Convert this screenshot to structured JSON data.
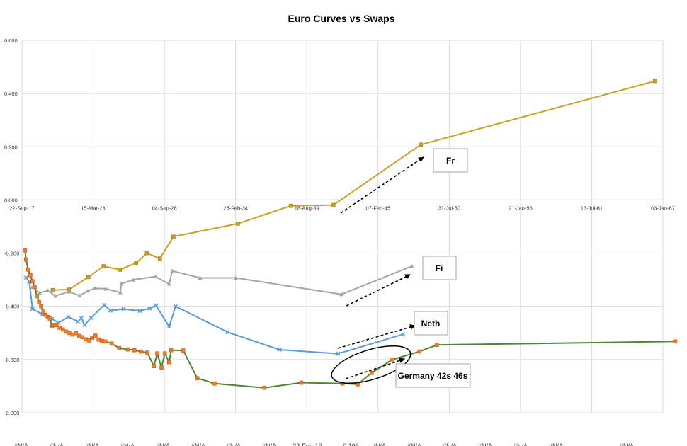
{
  "chart_data": {
    "type": "line",
    "title": "Euro Curves vs Swaps",
    "xlabel": "",
    "ylabel": "",
    "ylim": [
      -0.8,
      0.6
    ],
    "xlim": [
      "2017-09-22",
      "2067-01-03"
    ],
    "y_ticks": [
      "0.600",
      "0.400",
      "0.200",
      "0.000",
      "-0.200",
      "-0.400",
      "-0.600",
      "-0.800"
    ],
    "y_tick_values": [
      0.6,
      0.4,
      0.2,
      0.0,
      -0.2,
      -0.4,
      -0.6,
      -0.8
    ],
    "x_ticks": [
      "22-Sep-17",
      "15-Mar-23",
      "04-Sep-28",
      "25-Feb-34",
      "18-Aug-39",
      "07-Feb-45",
      "31-Jul-50",
      "21-Jan-56",
      "13-Jul-61",
      "03-Jan-67"
    ],
    "x_tick_dates": [
      "2017-09-22",
      "2023-03-15",
      "2028-09-04",
      "2034-02-25",
      "2039-08-18",
      "2045-02-07",
      "2050-07-31",
      "2056-01-21",
      "2061-07-13",
      "2067-01-03"
    ],
    "grid": true,
    "legend": "none",
    "bottom_labels": [
      "#N/A",
      "#N/A",
      "#N/A",
      "#N/A",
      "#N/A",
      "#N/A",
      "#N/A",
      "#N/A",
      "22-Feb-19",
      "-0.193",
      "#N/A",
      "#N/A",
      "#N/A",
      "#N/A",
      "#N/A",
      "#N/A",
      "#N/A"
    ],
    "series": [
      {
        "name": "Fr",
        "color": "#C9A227",
        "marker": "square",
        "points": [
          [
            "2020-02-01",
            -0.339
          ],
          [
            "2021-05-01",
            -0.337
          ],
          [
            "2022-11-01",
            -0.29
          ],
          [
            "2024-01-01",
            -0.249
          ],
          [
            "2025-04-01",
            -0.262
          ],
          [
            "2026-07-01",
            -0.237
          ],
          [
            "2027-05-01",
            -0.2
          ],
          [
            "2028-05-01",
            -0.22
          ],
          [
            "2029-05-15",
            -0.138
          ],
          [
            "2034-05-01",
            -0.089
          ],
          [
            "2038-05-25",
            -0.022
          ],
          [
            "2041-09-01",
            -0.019
          ],
          [
            "2048-05-25",
            0.208
          ],
          [
            "2066-05-25",
            0.447
          ]
        ]
      },
      {
        "name": "Fi",
        "color": "#A5A5A5",
        "marker": "triangle",
        "points": [
          [
            "2018-07-01",
            -0.328
          ],
          [
            "2019-02-01",
            -0.35
          ],
          [
            "2019-09-15",
            -0.34
          ],
          [
            "2020-04-15",
            -0.361
          ],
          [
            "2021-05-01",
            -0.345
          ],
          [
            "2022-03-01",
            -0.36
          ],
          [
            "2022-10-15",
            -0.342
          ],
          [
            "2023-05-01",
            -0.332
          ],
          [
            "2024-03-01",
            -0.334
          ],
          [
            "2025-04-15",
            -0.348
          ],
          [
            "2025-05-15",
            -0.315
          ],
          [
            "2026-04-15",
            -0.3
          ],
          [
            "2028-01-01",
            -0.288
          ],
          [
            "2029-01-15",
            -0.316
          ],
          [
            "2029-04-15",
            -0.267
          ],
          [
            "2031-06-01",
            -0.293
          ],
          [
            "2034-03-01",
            -0.293
          ],
          [
            "2042-04-15",
            -0.355
          ],
          [
            "2047-09-15",
            -0.249
          ]
        ]
      },
      {
        "name": "Neth",
        "color": "#5B9BD5",
        "marker": "x",
        "points": [
          [
            "2018-01-15",
            -0.292
          ],
          [
            "2018-04-15",
            -0.308
          ],
          [
            "2018-07-15",
            -0.41
          ],
          [
            "2019-04-15",
            -0.43
          ],
          [
            "2020-01-15",
            -0.447
          ],
          [
            "2020-07-15",
            -0.462
          ],
          [
            "2021-04-15",
            -0.44
          ],
          [
            "2022-01-15",
            -0.457
          ],
          [
            "2022-04-15",
            -0.444
          ],
          [
            "2022-07-15",
            -0.47
          ],
          [
            "2023-01-15",
            -0.443
          ],
          [
            "2024-01-15",
            -0.395
          ],
          [
            "2024-07-15",
            -0.416
          ],
          [
            "2025-07-15",
            -0.41
          ],
          [
            "2026-10-15",
            -0.417
          ],
          [
            "2027-07-15",
            -0.408
          ],
          [
            "2028-01-15",
            -0.397
          ],
          [
            "2029-01-15",
            -0.476
          ],
          [
            "2029-07-15",
            -0.4
          ],
          [
            "2033-07-15",
            -0.497
          ],
          [
            "2037-07-15",
            -0.563
          ],
          [
            "2042-01-15",
            -0.578
          ],
          [
            "2047-01-15",
            -0.505
          ]
        ]
      },
      {
        "name": "Germany",
        "color": "#548235",
        "marker": "square",
        "marker_color": "#ED7D31",
        "points": [
          [
            "2017-12-15",
            -0.19
          ],
          [
            "2018-01-15",
            -0.224
          ],
          [
            "2018-03-15",
            -0.262
          ],
          [
            "2018-05-15",
            -0.283
          ],
          [
            "2018-07-15",
            -0.306
          ],
          [
            "2018-09-15",
            -0.327
          ],
          [
            "2018-11-15",
            -0.362
          ],
          [
            "2019-01-15",
            -0.384
          ],
          [
            "2019-03-15",
            -0.4
          ],
          [
            "2019-05-15",
            -0.42
          ],
          [
            "2019-07-15",
            -0.432
          ],
          [
            "2019-09-15",
            -0.44
          ],
          [
            "2019-11-15",
            -0.446
          ],
          [
            "2020-01-15",
            -0.476
          ],
          [
            "2020-03-15",
            -0.47
          ],
          [
            "2020-05-15",
            -0.47
          ],
          [
            "2020-08-15",
            -0.48
          ],
          [
            "2020-11-15",
            -0.487
          ],
          [
            "2021-02-15",
            -0.495
          ],
          [
            "2021-05-15",
            -0.5
          ],
          [
            "2021-08-15",
            -0.506
          ],
          [
            "2021-11-15",
            -0.501
          ],
          [
            "2022-02-15",
            -0.511
          ],
          [
            "2022-05-15",
            -0.516
          ],
          [
            "2022-08-15",
            -0.524
          ],
          [
            "2022-11-15",
            -0.528
          ],
          [
            "2023-02-15",
            -0.518
          ],
          [
            "2023-05-15",
            -0.51
          ],
          [
            "2023-08-15",
            -0.525
          ],
          [
            "2023-11-15",
            -0.53
          ],
          [
            "2024-02-15",
            -0.532
          ],
          [
            "2024-08-15",
            -0.54
          ],
          [
            "2025-03-15",
            -0.557
          ],
          [
            "2025-11-15",
            -0.562
          ],
          [
            "2026-05-15",
            -0.565
          ],
          [
            "2026-11-15",
            -0.57
          ],
          [
            "2027-05-15",
            -0.574
          ],
          [
            "2027-11-15",
            -0.625
          ],
          [
            "2028-02-15",
            -0.577
          ],
          [
            "2028-06-15",
            -0.63
          ],
          [
            "2028-09-15",
            -0.577
          ],
          [
            "2029-01-15",
            -0.61
          ],
          [
            "2029-03-15",
            -0.565
          ],
          [
            "2030-02-15",
            -0.566
          ],
          [
            "2031-03-15",
            -0.67
          ],
          [
            "2032-07-15",
            -0.69
          ],
          [
            "2036-05-15",
            -0.706
          ],
          [
            "2039-03-15",
            -0.687
          ],
          [
            "2042-05-15",
            -0.69
          ],
          [
            "2043-07-15",
            -0.693
          ],
          [
            "2044-08-15",
            -0.65
          ],
          [
            "2046-03-15",
            -0.6
          ],
          [
            "2048-04-15",
            -0.57
          ],
          [
            "2049-08-15",
            -0.545
          ],
          [
            "2067-12-15",
            -0.532
          ]
        ]
      }
    ],
    "annotations": [
      {
        "text": "Fr"
      },
      {
        "text": "Fi"
      },
      {
        "text": "Neth"
      },
      {
        "text": "Germany 42s 46s"
      }
    ]
  }
}
